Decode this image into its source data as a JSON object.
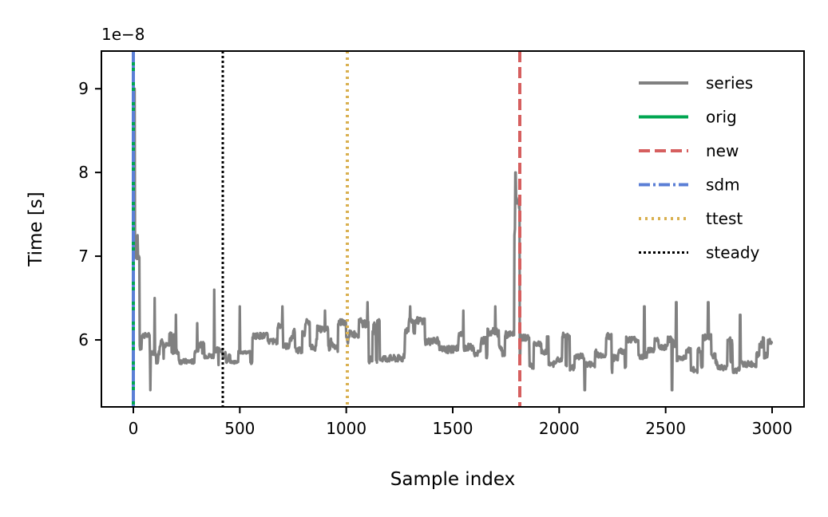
{
  "chart_data": {
    "type": "line",
    "title": "",
    "xlabel": "Sample index",
    "ylabel": "Time [s]",
    "y_offset_label": "1e−8",
    "xlim": [
      -150,
      3150
    ],
    "ylim": [
      5.2,
      9.45
    ],
    "x_ticks": [
      0,
      500,
      1000,
      1500,
      2000,
      2500,
      3000
    ],
    "x_tick_labels": [
      "0",
      "500",
      "1000",
      "1500",
      "2000",
      "2500",
      "3000"
    ],
    "y_ticks": [
      6,
      7,
      8,
      9
    ],
    "y_tick_labels": [
      "6",
      "7",
      "8",
      "9"
    ],
    "grid": false,
    "legend_position": "top-right",
    "series": [
      {
        "name": "series",
        "color": "#808080",
        "style": "solid",
        "n_points": 3000,
        "x_range": [
          0,
          3000
        ],
        "segments": [
          {
            "x": [
              0,
              30
            ],
            "base": 7.0,
            "jitter": 0.12,
            "spikes": [
              [
                0,
                9.3
              ],
              [
                5,
                9.0
              ],
              [
                20,
                7.25
              ]
            ]
          },
          {
            "x": [
              30,
              420
            ],
            "base": 5.9,
            "jitter": 0.1,
            "spikes": [
              [
                80,
                5.4
              ],
              [
                100,
                6.5
              ],
              [
                200,
                6.3
              ],
              [
                300,
                6.2
              ],
              [
                380,
                6.6
              ],
              [
                400,
                5.7
              ]
            ]
          },
          {
            "x": [
              420,
              560
            ],
            "base": 5.8,
            "jitter": 0.05,
            "spikes": [
              [
                500,
                6.4
              ]
            ]
          },
          {
            "x": [
              560,
              1000
            ],
            "base": 6.05,
            "jitter": 0.12,
            "spikes": [
              [
                700,
                6.4
              ],
              [
                900,
                6.35
              ]
            ]
          },
          {
            "x": [
              1000,
              1790
            ],
            "base": 6.0,
            "jitter": 0.14,
            "spikes": [
              [
                1100,
                6.45
              ],
              [
                1300,
                6.4
              ],
              [
                1550,
                6.35
              ],
              [
                1700,
                6.4
              ]
            ]
          },
          {
            "x": [
              1790,
              1815
            ],
            "base": 7.3,
            "jitter": 0.2,
            "spikes": [
              [
                1795,
                8.0
              ]
            ]
          },
          {
            "x": [
              1815,
              3000
            ],
            "base": 5.85,
            "jitter": 0.12,
            "spikes": [
              [
                2120,
                5.4
              ],
              [
                2400,
                6.4
              ],
              [
                2530,
                5.4
              ],
              [
                2550,
                6.45
              ],
              [
                2700,
                6.45
              ],
              [
                2850,
                6.3
              ]
            ]
          }
        ]
      }
    ],
    "vlines": [
      {
        "name": "orig",
        "x": 0,
        "color": "#00a651",
        "style": "solid"
      },
      {
        "name": "new",
        "x": 1815,
        "color": "#d65f5f",
        "style": "dashed"
      },
      {
        "name": "sdm",
        "x": 0,
        "color": "#5b7fd6",
        "style": "dashdot"
      },
      {
        "name": "ttest",
        "x": 1005,
        "color": "#d9b050",
        "style": "dotted"
      },
      {
        "name": "steady",
        "x": 420,
        "color": "#000000",
        "style": "dotted-fine"
      }
    ],
    "legend": [
      {
        "label": "series",
        "color": "#808080",
        "style": "solid"
      },
      {
        "label": "orig",
        "color": "#00a651",
        "style": "solid"
      },
      {
        "label": "new",
        "color": "#d65f5f",
        "style": "dashed"
      },
      {
        "label": "sdm",
        "color": "#5b7fd6",
        "style": "dashdot"
      },
      {
        "label": "ttest",
        "color": "#d9b050",
        "style": "dotted"
      },
      {
        "label": "steady",
        "color": "#000000",
        "style": "dotted-fine"
      }
    ]
  }
}
